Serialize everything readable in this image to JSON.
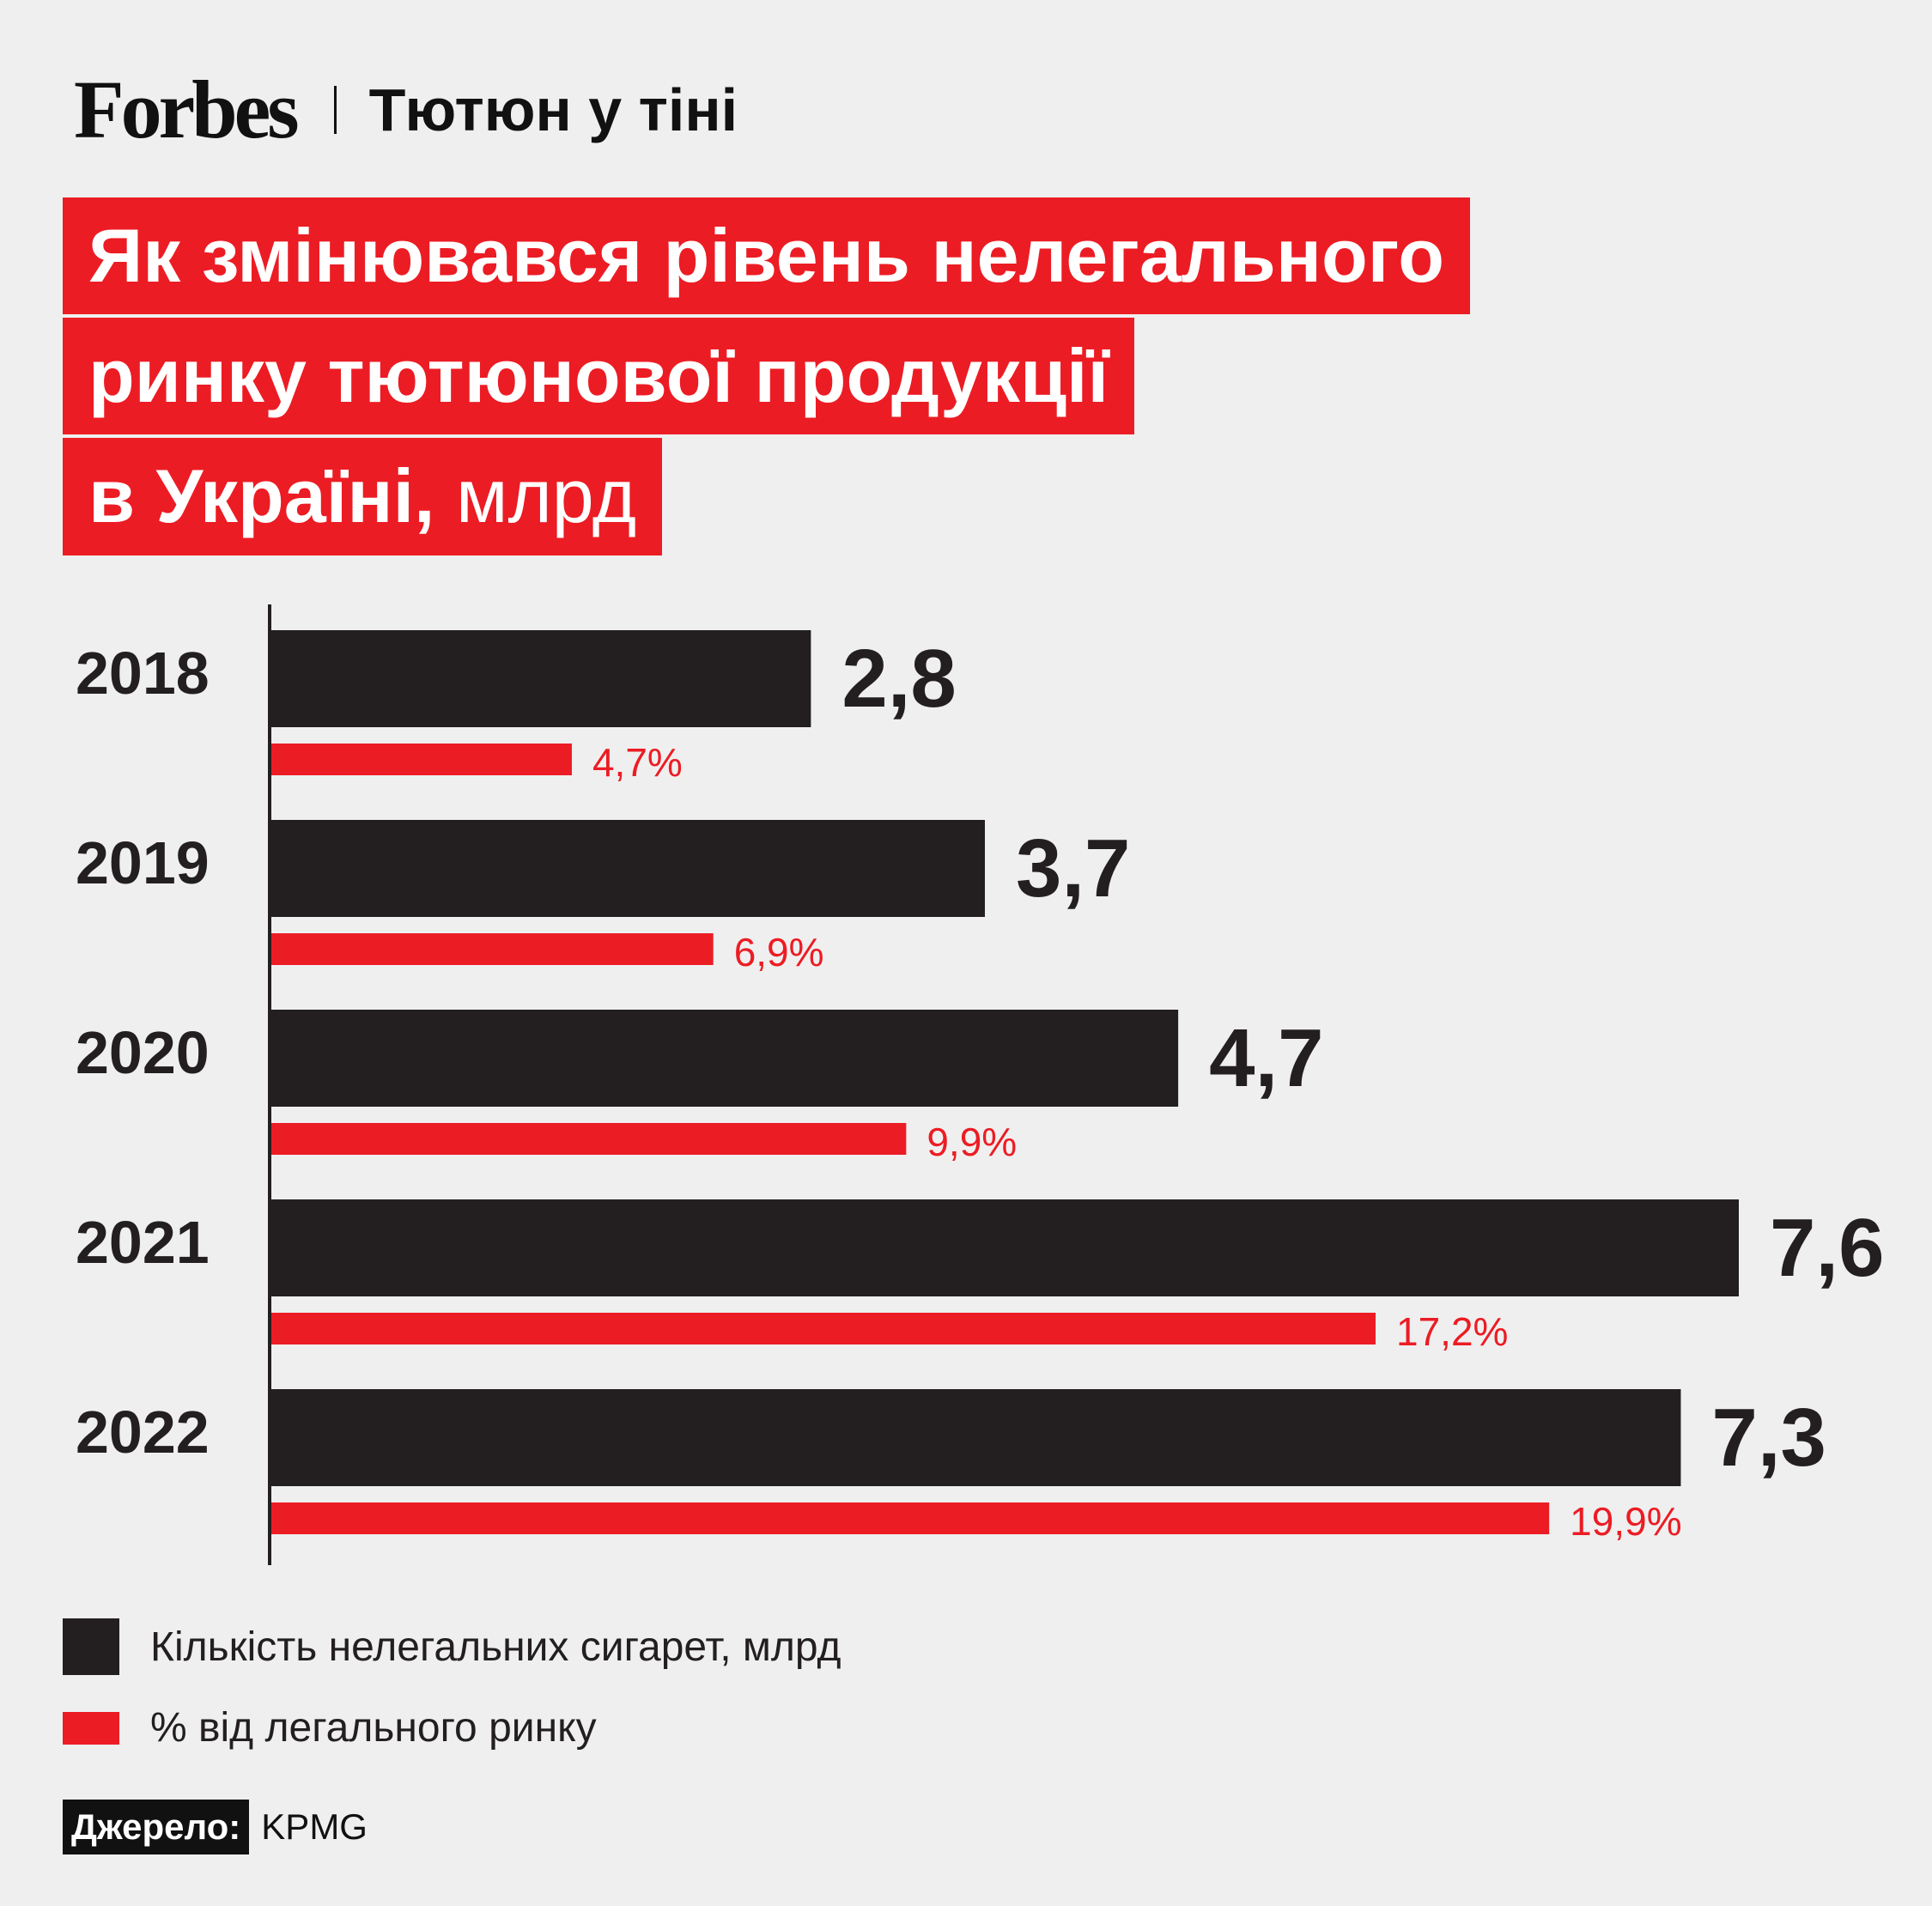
{
  "header": {
    "brand": "Forbes",
    "section": "Тютюн у тіні"
  },
  "title": {
    "line1": "Як змінювався рівень нелегального",
    "line2": "ринку тютюнової продукції",
    "line3": "в Україні,",
    "unit": "млрд"
  },
  "colors": {
    "background": "#efefef",
    "accent": "#ec1c24",
    "dark": "#231f20"
  },
  "legend": {
    "dark_label": "Кількість нелегальних сигарет, млрд",
    "red_label": "% від легального ринку"
  },
  "source": {
    "label": "Джерело:",
    "value": "KPMG"
  },
  "chart_data": {
    "type": "bar",
    "orientation": "horizontal",
    "categories": [
      "2018",
      "2019",
      "2020",
      "2021",
      "2022"
    ],
    "series": [
      {
        "name": "Кількість нелегальних сигарет, млрд",
        "values": [
          2.8,
          3.7,
          4.7,
          7.6,
          7.3
        ],
        "labels": [
          "2,8",
          "3,7",
          "4,7",
          "7,6",
          "7,3"
        ],
        "color": "#231f20"
      },
      {
        "name": "% від легального ринку",
        "values": [
          4.7,
          6.9,
          9.9,
          17.2,
          19.9
        ],
        "labels": [
          "4,7%",
          "6,9%",
          "9,9%",
          "17,2%",
          "19,9%"
        ],
        "color": "#ec1c24"
      }
    ],
    "legend_position": "bottom-left",
    "grid": false
  }
}
